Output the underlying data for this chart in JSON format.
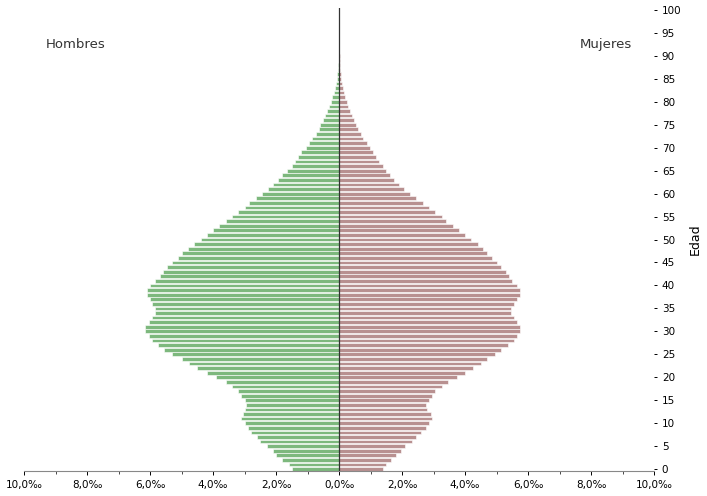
{
  "label_men": "Hombres",
  "label_women": "Mujeres",
  "ylabel": "Edad",
  "color_men": "#7db87d",
  "color_women": "#b89090",
  "xlim": 10.0,
  "ages": [
    0,
    1,
    2,
    3,
    4,
    5,
    6,
    7,
    8,
    9,
    10,
    11,
    12,
    13,
    14,
    15,
    16,
    17,
    18,
    19,
    20,
    21,
    22,
    23,
    24,
    25,
    26,
    27,
    28,
    29,
    30,
    31,
    32,
    33,
    34,
    35,
    36,
    37,
    38,
    39,
    40,
    41,
    42,
    43,
    44,
    45,
    46,
    47,
    48,
    49,
    50,
    51,
    52,
    53,
    54,
    55,
    56,
    57,
    58,
    59,
    60,
    61,
    62,
    63,
    64,
    65,
    66,
    67,
    68,
    69,
    70,
    71,
    72,
    73,
    74,
    75,
    76,
    77,
    78,
    79,
    80,
    81,
    82,
    83,
    84,
    85,
    86,
    87,
    88,
    89,
    90,
    91,
    92,
    93,
    94,
    95,
    96,
    97,
    98,
    99,
    100
  ],
  "men": [
    1.5,
    1.6,
    1.8,
    2.0,
    2.1,
    2.3,
    2.5,
    2.6,
    2.8,
    2.9,
    3.0,
    3.1,
    3.05,
    3.0,
    2.95,
    3.0,
    3.1,
    3.2,
    3.4,
    3.6,
    3.9,
    4.2,
    4.5,
    4.75,
    5.0,
    5.3,
    5.55,
    5.75,
    5.95,
    6.05,
    6.15,
    6.15,
    6.05,
    5.95,
    5.85,
    5.85,
    5.95,
    6.0,
    6.1,
    6.1,
    6.0,
    5.85,
    5.7,
    5.6,
    5.45,
    5.3,
    5.1,
    5.0,
    4.8,
    4.6,
    4.4,
    4.2,
    4.0,
    3.8,
    3.6,
    3.4,
    3.2,
    3.0,
    2.85,
    2.65,
    2.45,
    2.25,
    2.1,
    1.95,
    1.8,
    1.65,
    1.5,
    1.4,
    1.3,
    1.2,
    1.05,
    0.95,
    0.85,
    0.75,
    0.65,
    0.6,
    0.52,
    0.45,
    0.38,
    0.32,
    0.27,
    0.22,
    0.17,
    0.13,
    0.1,
    0.08,
    0.06,
    0.04,
    0.03,
    0.02,
    0.015,
    0.01,
    0.008,
    0.005,
    0.003,
    0.002,
    0.001,
    0.001,
    0.001,
    0.001,
    0.0005
  ],
  "women": [
    1.4,
    1.5,
    1.65,
    1.8,
    1.95,
    2.1,
    2.3,
    2.45,
    2.6,
    2.75,
    2.85,
    2.95,
    2.9,
    2.8,
    2.75,
    2.85,
    2.95,
    3.05,
    3.25,
    3.45,
    3.75,
    4.0,
    4.25,
    4.5,
    4.7,
    4.95,
    5.15,
    5.35,
    5.55,
    5.65,
    5.75,
    5.75,
    5.65,
    5.55,
    5.45,
    5.45,
    5.55,
    5.65,
    5.75,
    5.75,
    5.65,
    5.5,
    5.4,
    5.3,
    5.15,
    5.0,
    4.85,
    4.7,
    4.55,
    4.4,
    4.2,
    4.0,
    3.8,
    3.6,
    3.4,
    3.25,
    3.05,
    2.85,
    2.65,
    2.45,
    2.25,
    2.05,
    1.9,
    1.75,
    1.6,
    1.5,
    1.38,
    1.28,
    1.18,
    1.08,
    0.97,
    0.87,
    0.77,
    0.68,
    0.59,
    0.53,
    0.46,
    0.4,
    0.34,
    0.28,
    0.24,
    0.19,
    0.15,
    0.12,
    0.09,
    0.07,
    0.055,
    0.04,
    0.03,
    0.02,
    0.015,
    0.01,
    0.008,
    0.005,
    0.003,
    0.002,
    0.001,
    0.001,
    0.001,
    0.001,
    0.0005
  ],
  "xticks": [
    -10,
    -8,
    -6,
    -4,
    -2,
    0,
    2,
    4,
    6,
    8,
    10
  ],
  "xticklabels": [
    "10,0‰",
    "8,0‰",
    "6,0‰",
    "4,0‰",
    "2,0‰",
    "0,0‰",
    "2,0‰",
    "4,0‰",
    "6,0‰",
    "8,0‰",
    "10,0‰"
  ],
  "yticks": [
    0,
    5,
    10,
    15,
    20,
    25,
    30,
    35,
    40,
    45,
    50,
    55,
    60,
    65,
    70,
    75,
    80,
    85,
    90,
    95,
    100
  ],
  "background_color": "#ffffff"
}
